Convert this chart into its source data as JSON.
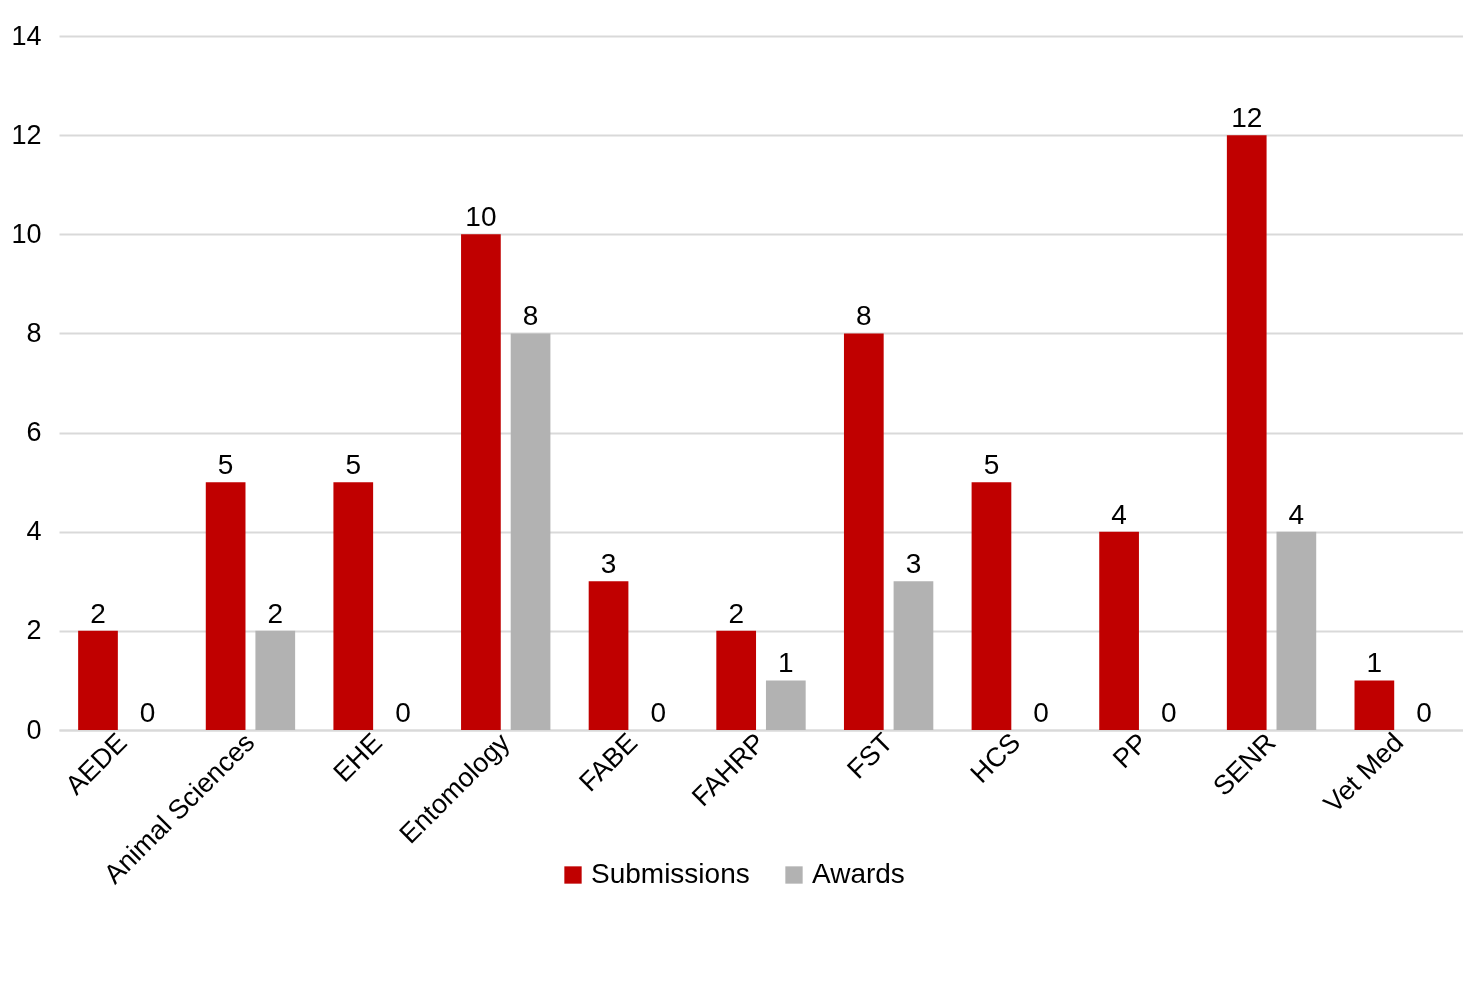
{
  "chart_data": {
    "type": "bar",
    "categories": [
      "AEDE",
      "Animal Sciences",
      "EHE",
      "Entomology",
      "FABE",
      "FAHRP",
      "FST",
      "HCS",
      "PP",
      "SENR",
      "Vet Med"
    ],
    "series": [
      {
        "name": "Submissions",
        "color": "#c00000",
        "values": [
          2,
          5,
          5,
          10,
          3,
          2,
          8,
          5,
          4,
          12,
          1
        ]
      },
      {
        "name": "Awards",
        "color": "#b2b2b2",
        "values": [
          0,
          2,
          0,
          8,
          0,
          1,
          3,
          0,
          0,
          4,
          0
        ]
      }
    ],
    "ylim": [
      0,
      14
    ],
    "yticks": [
      0,
      2,
      4,
      6,
      8,
      10,
      12,
      14
    ],
    "grid": "y",
    "legend": "bottom",
    "data_labels": true
  }
}
